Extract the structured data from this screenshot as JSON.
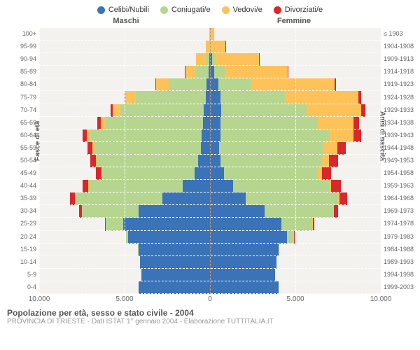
{
  "legend": [
    {
      "label": "Celibi/Nubili",
      "color": "#3b73b9"
    },
    {
      "label": "Coniugati/e",
      "color": "#b6d690"
    },
    {
      "label": "Vedovi/e",
      "color": "#ffc259"
    },
    {
      "label": "Divorziati/e",
      "color": "#d8272d"
    }
  ],
  "headers": {
    "left": "Maschi",
    "right": "Femmine"
  },
  "axis": {
    "left_title": "Fasce di età",
    "right_title": "Anni di nascita",
    "x_max": 10000,
    "x_ticks_left": [
      "10.000",
      "5.000",
      "0"
    ],
    "x_ticks_right": [
      "5.000",
      "10.000"
    ]
  },
  "colors": {
    "celibi": "#3b73b9",
    "coniugati": "#b6d690",
    "vedovi": "#ffc259",
    "divorziati": "#d8272d",
    "bg": "#f3f2ee",
    "grid": "#ffffff",
    "center": "#cc9966"
  },
  "rows": [
    {
      "age": "100+",
      "birth": "≤ 1903",
      "m": [
        5,
        5,
        40,
        0
      ],
      "f": [
        5,
        5,
        250,
        0
      ]
    },
    {
      "age": "95-99",
      "birth": "1904-1908",
      "m": [
        15,
        15,
        200,
        0
      ],
      "f": [
        20,
        20,
        850,
        5
      ]
    },
    {
      "age": "90-94",
      "birth": "1909-1913",
      "m": [
        60,
        200,
        550,
        5
      ],
      "f": [
        120,
        150,
        2600,
        10
      ]
    },
    {
      "age": "85-89",
      "birth": "1914-1918",
      "m": [
        100,
        700,
        650,
        10
      ],
      "f": [
        250,
        600,
        3700,
        30
      ]
    },
    {
      "age": "80-84",
      "birth": "1919-1923",
      "m": [
        200,
        2200,
        750,
        30
      ],
      "f": [
        500,
        1900,
        4900,
        80
      ]
    },
    {
      "age": "75-79",
      "birth": "1924-1928",
      "m": [
        250,
        4100,
        600,
        70
      ],
      "f": [
        600,
        3800,
        4300,
        150
      ]
    },
    {
      "age": "70-74",
      "birth": "1929-1933",
      "m": [
        350,
        4900,
        450,
        120
      ],
      "f": [
        650,
        5000,
        3200,
        250
      ]
    },
    {
      "age": "65-69",
      "birth": "1934-1938",
      "m": [
        400,
        5700,
        300,
        180
      ],
      "f": [
        600,
        5700,
        2100,
        350
      ]
    },
    {
      "age": "60-64",
      "birth": "1939-1943",
      "m": [
        500,
        6500,
        200,
        250
      ],
      "f": [
        600,
        6400,
        1400,
        450
      ]
    },
    {
      "age": "55-59",
      "birth": "1944-1948",
      "m": [
        550,
        6200,
        130,
        300
      ],
      "f": [
        550,
        6100,
        800,
        500
      ]
    },
    {
      "age": "50-54",
      "birth": "1949-1953",
      "m": [
        700,
        5900,
        80,
        350
      ],
      "f": [
        600,
        5900,
        450,
        550
      ]
    },
    {
      "age": "45-49",
      "birth": "1954-1958",
      "m": [
        900,
        5400,
        50,
        350
      ],
      "f": [
        800,
        5500,
        250,
        550
      ]
    },
    {
      "age": "40-44",
      "birth": "1959-1963",
      "m": [
        1600,
        5500,
        30,
        350
      ],
      "f": [
        1350,
        5600,
        150,
        550
      ]
    },
    {
      "age": "35-39",
      "birth": "1964-1968",
      "m": [
        2800,
        5100,
        15,
        280
      ],
      "f": [
        2100,
        5400,
        80,
        450
      ]
    },
    {
      "age": "30-34",
      "birth": "1969-1973",
      "m": [
        4200,
        3300,
        5,
        150
      ],
      "f": [
        3200,
        4000,
        40,
        280
      ]
    },
    {
      "age": "25-29",
      "birth": "1974-1978",
      "m": [
        5100,
        1000,
        0,
        40
      ],
      "f": [
        4200,
        1800,
        15,
        100
      ]
    },
    {
      "age": "20-24",
      "birth": "1979-1983",
      "m": [
        4800,
        120,
        0,
        5
      ],
      "f": [
        4500,
        400,
        5,
        15
      ]
    },
    {
      "age": "15-19",
      "birth": "1984-1988",
      "m": [
        4200,
        5,
        0,
        0
      ],
      "f": [
        4000,
        30,
        0,
        0
      ]
    },
    {
      "age": "10-14",
      "birth": "1989-1993",
      "m": [
        4100,
        0,
        0,
        0
      ],
      "f": [
        3900,
        0,
        0,
        0
      ]
    },
    {
      "age": "5-9",
      "birth": "1994-1998",
      "m": [
        4000,
        0,
        0,
        0
      ],
      "f": [
        3800,
        0,
        0,
        0
      ]
    },
    {
      "age": "0-4",
      "birth": "1999-2003",
      "m": [
        4200,
        0,
        0,
        0
      ],
      "f": [
        4000,
        0,
        0,
        0
      ]
    }
  ],
  "footer": {
    "title": "Popolazione per età, sesso e stato civile - 2004",
    "sub": "PROVINCIA DI TRIESTE - Dati ISTAT 1° gennaio 2004 - Elaborazione TUTTITALIA.IT"
  }
}
